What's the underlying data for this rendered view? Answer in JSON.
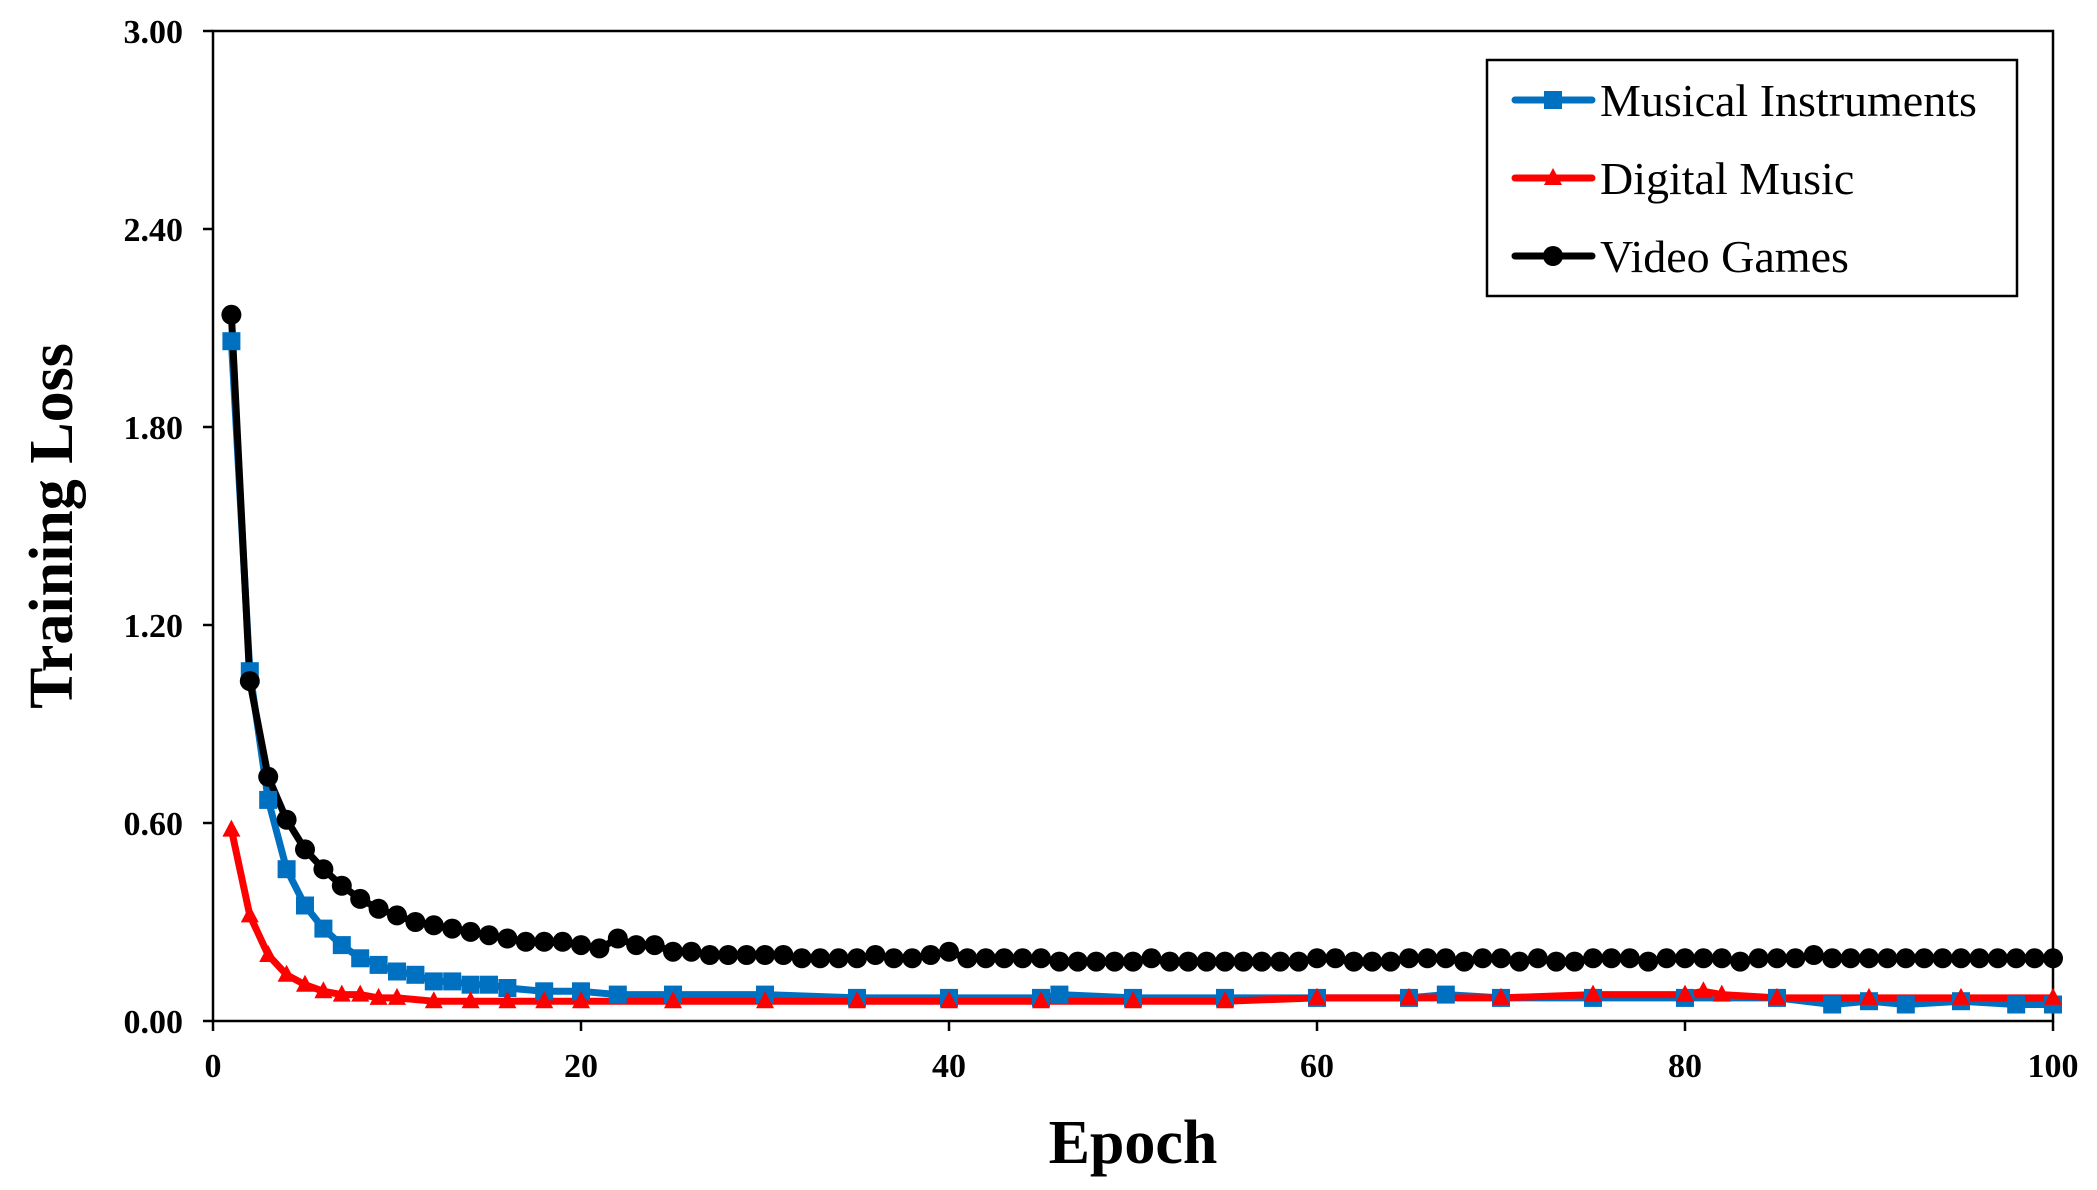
{
  "chart_data": {
    "type": "line",
    "title": "",
    "xlabel": "Epoch",
    "ylabel": "Training Loss",
    "xlim": [
      0,
      100
    ],
    "ylim": [
      0,
      3.0
    ],
    "xticks": [
      0,
      20,
      40,
      60,
      80,
      100
    ],
    "xtick_labels": [
      "0",
      "20",
      "40",
      "60",
      "80",
      "100"
    ],
    "yticks": [
      0,
      0.6,
      1.2,
      1.8,
      2.4,
      3.0
    ],
    "ytick_labels": [
      "0.00",
      "0.60",
      "1.20",
      "1.80",
      "2.40",
      "3.00"
    ],
    "grid": false,
    "legend_position": "top-right",
    "series": [
      {
        "name": "Musical Instruments",
        "color": "#0070C0",
        "marker": "square",
        "x": [
          1,
          2,
          3,
          4,
          5,
          6,
          7,
          8,
          9,
          10,
          11,
          12,
          13,
          14,
          15,
          16,
          18,
          20,
          22,
          25,
          30,
          35,
          40,
          45,
          46,
          50,
          55,
          60,
          65,
          67,
          70,
          75,
          80,
          85,
          88,
          90,
          92,
          95,
          98,
          100
        ],
        "y": [
          2.06,
          1.06,
          0.67,
          0.46,
          0.35,
          0.28,
          0.23,
          0.19,
          0.17,
          0.15,
          0.14,
          0.12,
          0.12,
          0.11,
          0.11,
          0.1,
          0.09,
          0.09,
          0.08,
          0.08,
          0.08,
          0.07,
          0.07,
          0.07,
          0.08,
          0.07,
          0.07,
          0.07,
          0.07,
          0.08,
          0.07,
          0.07,
          0.07,
          0.07,
          0.05,
          0.06,
          0.05,
          0.06,
          0.05,
          0.05
        ]
      },
      {
        "name": "Digital Music",
        "color": "#FF0000",
        "marker": "triangle",
        "x": [
          1,
          2,
          3,
          4,
          5,
          6,
          7,
          8,
          9,
          10,
          12,
          14,
          16,
          18,
          20,
          25,
          30,
          35,
          40,
          45,
          50,
          55,
          60,
          65,
          70,
          75,
          80,
          81,
          82,
          85,
          90,
          95,
          100
        ],
        "y": [
          0.58,
          0.32,
          0.2,
          0.14,
          0.11,
          0.09,
          0.08,
          0.08,
          0.07,
          0.07,
          0.06,
          0.06,
          0.06,
          0.06,
          0.06,
          0.06,
          0.06,
          0.06,
          0.06,
          0.06,
          0.06,
          0.06,
          0.07,
          0.07,
          0.07,
          0.08,
          0.08,
          0.09,
          0.08,
          0.07,
          0.07,
          0.07,
          0.07
        ]
      },
      {
        "name": "Video Games",
        "color": "#000000",
        "marker": "circle",
        "x": [
          1,
          2,
          3,
          4,
          5,
          6,
          7,
          8,
          9,
          10,
          11,
          12,
          13,
          14,
          15,
          16,
          17,
          18,
          19,
          20,
          21,
          22,
          23,
          24,
          25,
          26,
          27,
          28,
          29,
          30,
          31,
          32,
          33,
          34,
          35,
          36,
          37,
          38,
          39,
          40,
          41,
          42,
          43,
          44,
          45,
          46,
          47,
          48,
          49,
          50,
          51,
          52,
          53,
          54,
          55,
          56,
          57,
          58,
          59,
          60,
          61,
          62,
          63,
          64,
          65,
          66,
          67,
          68,
          69,
          70,
          71,
          72,
          73,
          74,
          75,
          76,
          77,
          78,
          79,
          80,
          81,
          82,
          83,
          84,
          85,
          86,
          87,
          88,
          89,
          90,
          91,
          92,
          93,
          94,
          95,
          96,
          97,
          98,
          99,
          100
        ],
        "y": [
          2.14,
          1.03,
          0.74,
          0.61,
          0.52,
          0.46,
          0.41,
          0.37,
          0.34,
          0.32,
          0.3,
          0.29,
          0.28,
          0.27,
          0.26,
          0.25,
          0.24,
          0.24,
          0.24,
          0.23,
          0.22,
          0.25,
          0.23,
          0.23,
          0.21,
          0.21,
          0.2,
          0.2,
          0.2,
          0.2,
          0.2,
          0.19,
          0.19,
          0.19,
          0.19,
          0.2,
          0.19,
          0.19,
          0.2,
          0.21,
          0.19,
          0.19,
          0.19,
          0.19,
          0.19,
          0.18,
          0.18,
          0.18,
          0.18,
          0.18,
          0.19,
          0.18,
          0.18,
          0.18,
          0.18,
          0.18,
          0.18,
          0.18,
          0.18,
          0.19,
          0.19,
          0.18,
          0.18,
          0.18,
          0.19,
          0.19,
          0.19,
          0.18,
          0.19,
          0.19,
          0.18,
          0.19,
          0.18,
          0.18,
          0.19,
          0.19,
          0.19,
          0.18,
          0.19,
          0.19,
          0.19,
          0.19,
          0.18,
          0.19,
          0.19,
          0.19,
          0.2,
          0.19,
          0.19,
          0.19,
          0.19,
          0.19,
          0.19,
          0.19,
          0.19,
          0.19,
          0.19,
          0.19,
          0.19,
          0.19
        ]
      }
    ]
  }
}
